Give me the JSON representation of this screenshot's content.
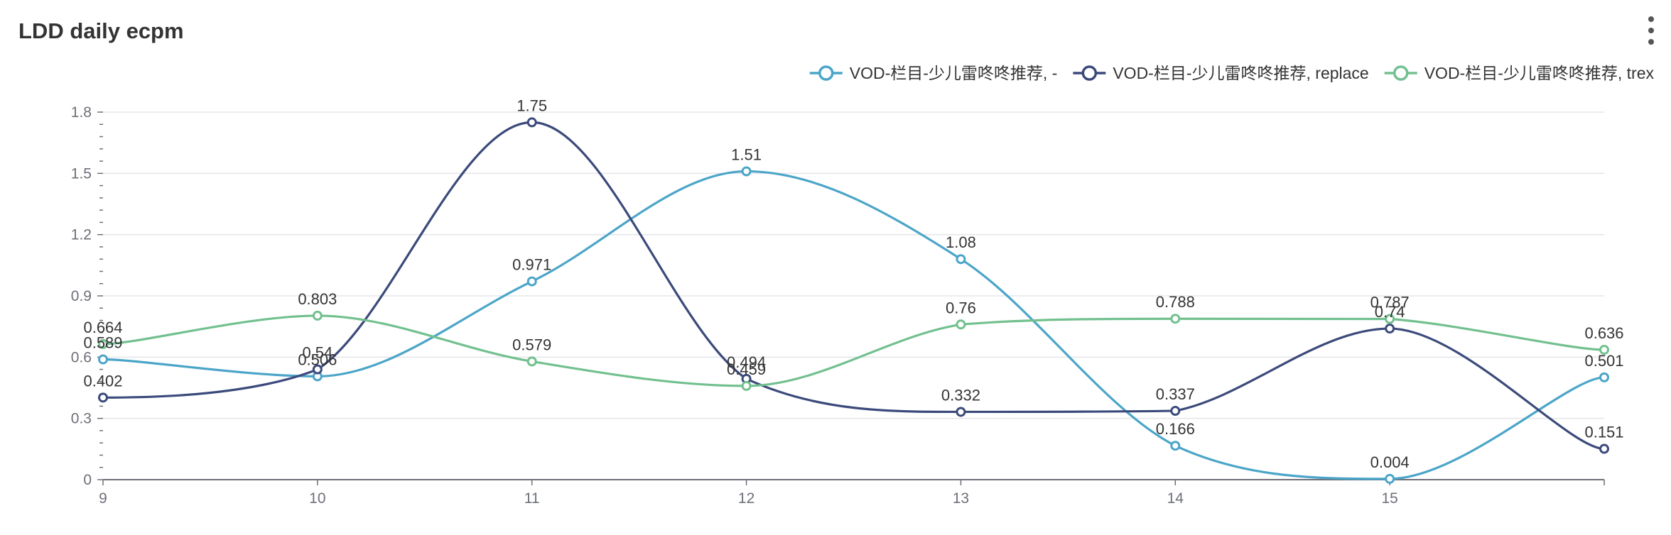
{
  "title": "LDD daily ecpm",
  "more_menu": {
    "icon": "more-vertical-icon"
  },
  "chart_data": {
    "type": "line",
    "smooth": true,
    "x": [
      "9",
      "10",
      "11",
      "12",
      "13",
      "14",
      "15",
      "16"
    ],
    "xticks": [
      "9",
      "10",
      "11",
      "12",
      "13",
      "14",
      "15"
    ],
    "ylim": [
      0,
      1.8
    ],
    "yticks": [
      "0",
      "0.3",
      "0.6",
      "0.9",
      "1.2",
      "1.5",
      "1.8"
    ],
    "grid": "horizontal",
    "legend_position": "top-right",
    "series": [
      {
        "name": "VOD-栏目-少儿雷咚咚推荐, -",
        "color": "#4ba5c8",
        "values": [
          0.589,
          0.506,
          0.971,
          1.51,
          1.08,
          0.166,
          0.004,
          0.501
        ],
        "labels": [
          "0.589",
          "0.506",
          "0.971",
          "1.51",
          "1.08",
          "0.166",
          "0.004",
          "0.501"
        ]
      },
      {
        "name": "VOD-栏目-少儿雷咚咚推荐, replace",
        "color": "#3b4a7b",
        "values": [
          0.402,
          0.54,
          1.75,
          0.494,
          0.332,
          0.337,
          0.74,
          0.151
        ],
        "labels": [
          "0.402",
          "0.54",
          "1.75",
          "0.494",
          "0.332",
          "0.337",
          "0.74",
          "0.151"
        ]
      },
      {
        "name": "VOD-栏目-少儿雷咚咚推荐, trex",
        "color": "#72c08f",
        "values": [
          0.664,
          0.803,
          0.579,
          0.459,
          0.76,
          0.788,
          0.787,
          0.636
        ],
        "labels": [
          "0.664",
          "0.803",
          "0.579",
          "0.459",
          "0.76",
          "0.788",
          "0.787",
          "0.636"
        ]
      }
    ]
  }
}
